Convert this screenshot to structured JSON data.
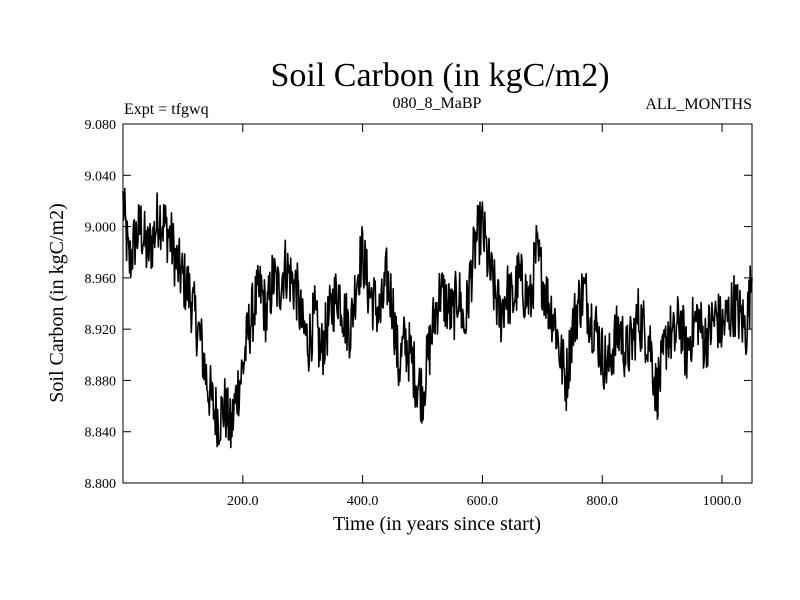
{
  "chart_data": {
    "type": "line",
    "title": "Soil Carbon (in kgC/m2)",
    "subtitle_left": "Expt = tfgwq",
    "subtitle_center": "080_8_MaBP",
    "subtitle_right": "ALL_MONTHS",
    "xlabel": "Time (in years since start)",
    "ylabel": "Soil Carbon (in kgC/m2)",
    "xlim": [
      0,
      1050
    ],
    "ylim": [
      8.8,
      9.08
    ],
    "x_ticks": [
      200,
      400,
      600,
      800,
      1000
    ],
    "x_tick_labels": [
      "200.0",
      "400.0",
      "600.0",
      "800.0",
      "1000.0"
    ],
    "y_ticks": [
      8.8,
      8.84,
      8.88,
      8.92,
      8.96,
      9.0,
      9.04,
      9.08
    ],
    "y_tick_labels": [
      "8.800",
      "8.840",
      "8.880",
      "8.920",
      "8.960",
      "9.000",
      "9.040",
      "9.080"
    ],
    "grid": false,
    "series": [
      {
        "name": "Soil Carbon",
        "color": "#000000",
        "x": [
          0,
          10,
          20,
          30,
          40,
          50,
          60,
          70,
          80,
          90,
          100,
          110,
          120,
          130,
          140,
          150,
          160,
          170,
          180,
          190,
          200,
          210,
          220,
          230,
          240,
          250,
          260,
          270,
          280,
          290,
          300,
          310,
          320,
          330,
          340,
          350,
          360,
          370,
          380,
          390,
          400,
          410,
          420,
          430,
          440,
          450,
          460,
          470,
          480,
          490,
          500,
          510,
          520,
          530,
          540,
          550,
          560,
          570,
          580,
          590,
          600,
          610,
          620,
          630,
          640,
          650,
          660,
          670,
          680,
          690,
          700,
          710,
          720,
          730,
          740,
          750,
          760,
          770,
          780,
          790,
          800,
          810,
          820,
          830,
          840,
          850,
          860,
          870,
          880,
          890,
          900,
          910,
          920,
          930,
          940,
          950,
          960,
          970,
          980,
          990,
          1000,
          1010,
          1020,
          1030,
          1040,
          1050
        ],
        "y": [
          9.02,
          8.97,
          8.99,
          9.0,
          8.98,
          8.99,
          9.01,
          9.0,
          8.99,
          8.97,
          8.96,
          8.95,
          8.93,
          8.91,
          8.88,
          8.86,
          8.85,
          8.86,
          8.84,
          8.87,
          8.89,
          8.92,
          8.94,
          8.95,
          8.93,
          8.96,
          8.95,
          8.97,
          8.96,
          8.95,
          8.92,
          8.91,
          8.93,
          8.9,
          8.92,
          8.94,
          8.95,
          8.93,
          8.92,
          8.96,
          8.98,
          8.95,
          8.94,
          8.93,
          8.96,
          8.94,
          8.89,
          8.91,
          8.9,
          8.88,
          8.87,
          8.9,
          8.93,
          8.95,
          8.94,
          8.93,
          8.95,
          8.92,
          8.96,
          8.99,
          9.0,
          8.97,
          8.95,
          8.93,
          8.95,
          8.94,
          8.96,
          8.95,
          8.94,
          8.98,
          8.96,
          8.94,
          8.93,
          8.9,
          8.88,
          8.92,
          8.94,
          8.95,
          8.93,
          8.92,
          8.9,
          8.89,
          8.91,
          8.92,
          8.9,
          8.91,
          8.93,
          8.92,
          8.91,
          8.87,
          8.89,
          8.92,
          8.91,
          8.93,
          8.9,
          8.92,
          8.93,
          8.91,
          8.92,
          8.93,
          8.92,
          8.93,
          8.94,
          8.93,
          8.92,
          8.96
        ]
      }
    ]
  }
}
